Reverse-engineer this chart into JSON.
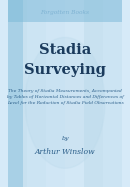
{
  "bg_color": "#d6eaf8",
  "title_line1": "Stadia",
  "title_line2": "Surveying",
  "subtitle": "The Theory of Stadia Measurements, Accompanied\nby Tables of Horizontal Distances and Differences of\nLevel for the Reduction of Stadia Field Observations",
  "by_text": "by",
  "author": "Arthur Winslow",
  "publisher": "Forgotten Books",
  "title_color": "#1a3a5c",
  "subtitle_color": "#2c5f8a",
  "author_color": "#2c5f8a",
  "publisher_color": "#7fb3d3",
  "grid_color_dark": "#a8cfe0",
  "grid_color_light": "#c5dff0"
}
